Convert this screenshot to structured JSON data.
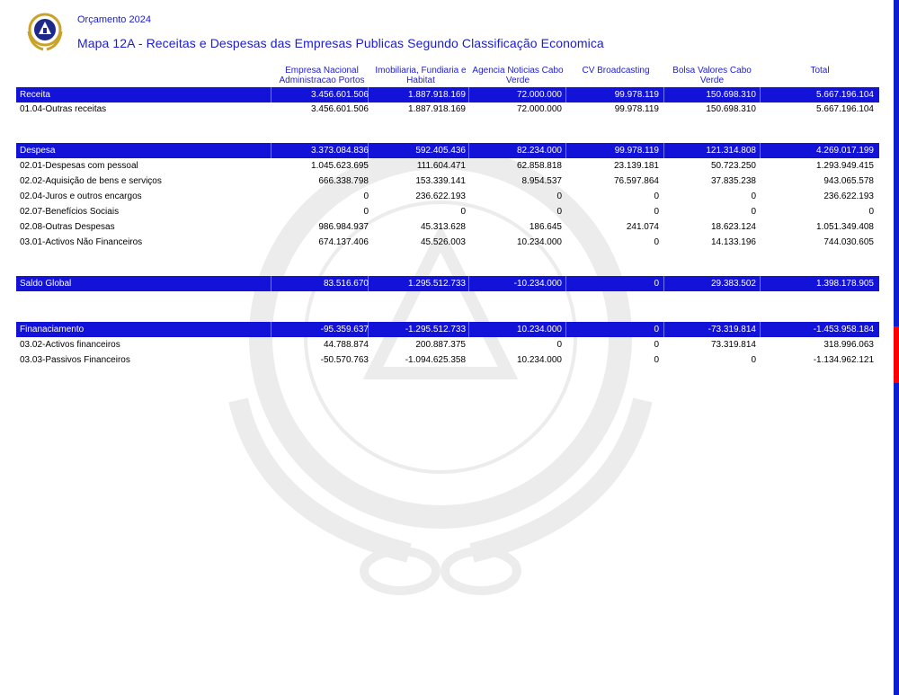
{
  "header": {
    "subtitle": "Orçamento 2024",
    "title": "Mapa 12A - Receitas e Despesas das Empresas Publicas Segundo Classificação Economica"
  },
  "columns": [
    {
      "line1": "Empresa Nacional",
      "line2": "Administracao Portos"
    },
    {
      "line1": "Imobiliaria, Fundiaria e",
      "line2": "Habitat"
    },
    {
      "line1": "Agencia Noticias Cabo",
      "line2": "Verde"
    },
    {
      "line1": "CV Broadcasting",
      "line2": ""
    },
    {
      "line1": "Bolsa Valores Cabo",
      "line2": "Verde"
    },
    {
      "line1": "Total",
      "line2": ""
    }
  ],
  "rows": [
    {
      "label": "Receita",
      "values": [
        "3.456.601.506",
        "1.887.918.169",
        "72.000.000",
        "99.978.119",
        "150.698.310",
        "5.667.196.104"
      ]
    },
    {
      "label": "01.04-Outras receitas",
      "values": [
        "3.456.601.506",
        "1.887.918.169",
        "72.000.000",
        "99.978.119",
        "150.698.310",
        "5.667.196.104"
      ]
    },
    {
      "label": "Despesa",
      "values": [
        "3.373.084.836",
        "592.405.436",
        "82.234.000",
        "99.978.119",
        "121.314.808",
        "4.269.017.199"
      ]
    },
    {
      "label": "02.01-Despesas com pessoal",
      "values": [
        "1.045.623.695",
        "111.604.471",
        "62.858.818",
        "23.139.181",
        "50.723.250",
        "1.293.949.415"
      ]
    },
    {
      "label": "02.02-Aquisição de bens e serviços",
      "values": [
        "666.338.798",
        "153.339.141",
        "8.954.537",
        "76.597.864",
        "37.835.238",
        "943.065.578"
      ]
    },
    {
      "label": "02.04-Juros e outros encargos",
      "values": [
        "0",
        "236.622.193",
        "0",
        "0",
        "0",
        "236.622.193"
      ]
    },
    {
      "label": "02.07-Benefícios Sociais",
      "values": [
        "0",
        "0",
        "0",
        "0",
        "0",
        "0"
      ]
    },
    {
      "label": "02.08-Outras Despesas",
      "values": [
        "986.984.937",
        "45.313.628",
        "186.645",
        "241.074",
        "18.623.124",
        "1.051.349.408"
      ]
    },
    {
      "label": "03.01-Activos Não Financeiros",
      "values": [
        "674.137.406",
        "45.526.003",
        "10.234.000",
        "0",
        "14.133.196",
        "744.030.605"
      ]
    },
    {
      "label": "Saldo Global",
      "values": [
        "83.516.670",
        "1.295.512.733",
        "-10.234.000",
        "0",
        "29.383.502",
        "1.398.178.905"
      ]
    },
    {
      "label": "Finanaciamento",
      "values": [
        "-95.359.637",
        "-1.295.512.733",
        "10.234.000",
        "0",
        "-73.319.814",
        "-1.453.958.184"
      ]
    },
    {
      "label": "03.02-Activos financeiros",
      "values": [
        "44.788.874",
        "200.887.375",
        "0",
        "0",
        "73.319.814",
        "318.996.063"
      ]
    },
    {
      "label": "03.03-Passivos Financeiros",
      "values": [
        "-50.570.763",
        "-1.094.625.358",
        "10.234.000",
        "0",
        "0",
        "-1.134.962.121"
      ]
    }
  ]
}
